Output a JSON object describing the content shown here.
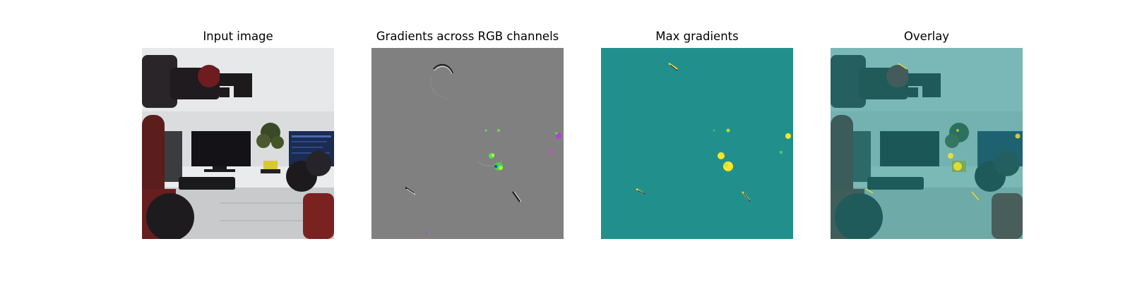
{
  "panels": [
    {
      "title": "Input image"
    },
    {
      "title": "Gradients across RGB channels"
    },
    {
      "title": "Max gradients"
    },
    {
      "title": "Overlay"
    }
  ],
  "colors": {
    "gradient_background": "#808080",
    "max_gradient_background": "#21908d",
    "max_gradient_highlight": "#fde725",
    "overlay_tint": "#2a8a86"
  }
}
